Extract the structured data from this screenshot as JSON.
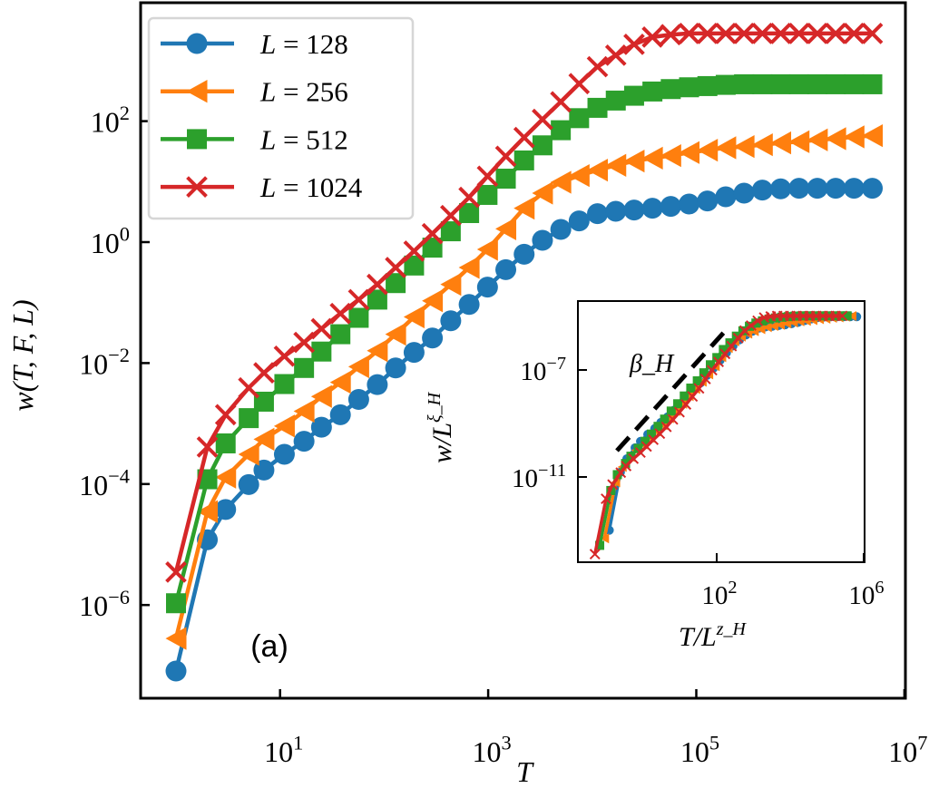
{
  "chart_data": {
    "type": "line",
    "panel_label": "(a)",
    "xlabel": "T",
    "ylabel": "w(T, F, L)",
    "xscale": "log",
    "yscale": "log",
    "xlim": [
      0.46,
      10000000.0
    ],
    "ylim": [
      2.9e-08,
      9100
    ],
    "grid": false,
    "legend": {
      "position": "top-left"
    },
    "xticks": [
      {
        "value": 10,
        "base": "10",
        "exp": "1"
      },
      {
        "value": 1000,
        "base": "10",
        "exp": "3"
      },
      {
        "value": 100000,
        "base": "10",
        "exp": "5"
      },
      {
        "value": 10000000,
        "base": "10",
        "exp": "7"
      }
    ],
    "yticks": [
      {
        "value": 100,
        "base": "10",
        "exp": "2"
      },
      {
        "value": 1,
        "base": "10",
        "exp": "0"
      },
      {
        "value": 0.01,
        "base": "10",
        "exp": "−2"
      },
      {
        "value": 0.0001,
        "base": "10",
        "exp": "−4"
      },
      {
        "value": 1e-06,
        "base": "10",
        "exp": "−6"
      }
    ],
    "x": [
      1,
      2,
      3,
      5,
      7,
      11,
      17,
      25,
      38,
      57,
      86,
      129,
      194,
      291,
      437,
      656,
      985,
      1477,
      2216,
      3325,
      4987,
      7481,
      11222,
      16834,
      25251,
      37876,
      56815,
      85222,
      127834,
      191751,
      287626,
      431439,
      647159,
      970739,
      1456109,
      2184164,
      3276246,
      4914369
    ],
    "series": [
      {
        "name": "L = 128",
        "color": "#1f77b4",
        "marker": "circle",
        "values": [
          8.1e-08,
          1.2e-05,
          3.8e-05,
          9.8e-05,
          0.00017,
          0.00031,
          0.00051,
          0.00087,
          0.0014,
          0.0025,
          0.0044,
          0.0083,
          0.015,
          0.026,
          0.05,
          0.093,
          0.18,
          0.35,
          0.63,
          1.07,
          1.62,
          2.24,
          2.95,
          3.24,
          3.39,
          3.63,
          3.89,
          4.27,
          4.79,
          5.62,
          6.46,
          7.24,
          7.59,
          7.76,
          7.76,
          7.76,
          7.76,
          7.76
        ]
      },
      {
        "name": "L = 256",
        "color": "#ff7f0e",
        "marker": "triangle-left",
        "values": [
          2.8e-07,
          3.5e-05,
          0.00013,
          0.00031,
          0.00055,
          0.00091,
          0.0016,
          0.0028,
          0.0048,
          0.0087,
          0.016,
          0.03,
          0.058,
          0.107,
          0.2,
          0.38,
          0.76,
          1.66,
          3.63,
          6.46,
          9.77,
          12.6,
          15.5,
          18.6,
          21.9,
          24.5,
          26.9,
          30.2,
          33.1,
          36.3,
          38.0,
          40.7,
          43.7,
          45.7,
          49.0,
          51.3,
          55.0,
          57.5
        ]
      },
      {
        "name": "L = 512",
        "color": "#2ca02c",
        "marker": "square",
        "values": [
          1.07e-06,
          0.00012,
          0.00047,
          0.00123,
          0.0023,
          0.0045,
          0.0083,
          0.0155,
          0.03,
          0.056,
          0.112,
          0.21,
          0.41,
          0.81,
          1.51,
          3.02,
          6.03,
          11.2,
          22.4,
          39.8,
          70.8,
          112,
          166,
          219,
          263,
          309,
          339,
          363,
          380,
          398,
          407,
          407,
          407,
          407,
          407,
          407,
          407,
          407
        ]
      },
      {
        "name": "L = 1024",
        "color": "#d62728",
        "marker": "x",
        "values": [
          3.5e-06,
          0.00041,
          0.0014,
          0.0039,
          0.0069,
          0.013,
          0.022,
          0.037,
          0.066,
          0.112,
          0.2,
          0.38,
          0.71,
          1.38,
          2.75,
          5.5,
          12.3,
          26.3,
          53.7,
          107,
          209,
          417,
          794,
          1230,
          1862,
          2455,
          2692,
          2818,
          2818,
          2818,
          2818,
          2818,
          2818,
          2818,
          2818,
          2818,
          2818,
          2818
        ]
      }
    ],
    "inset": {
      "xlabel_base": "T/L",
      "xlabel_exp": "z_H",
      "ylabel_base": "w/L",
      "ylabel_exp": "ξ_H",
      "annotation": "β_H",
      "xscale": "log",
      "yscale": "log",
      "xlim": [
        0.018,
        1000000.0
      ],
      "ylim": [
        6.5e-15,
        3.8e-05
      ],
      "reference_line": {
        "style": "dashed",
        "color": "#000000"
      },
      "xticks": [
        {
          "value": 100,
          "base": "10",
          "exp": "2"
        },
        {
          "value": 1000000,
          "base": "10",
          "exp": "6"
        }
      ],
      "yticks": [
        {
          "value": 1e-07,
          "base": "10",
          "exp": "−7"
        },
        {
          "value": 1e-11,
          "base": "10",
          "exp": "−11"
        }
      ]
    }
  }
}
